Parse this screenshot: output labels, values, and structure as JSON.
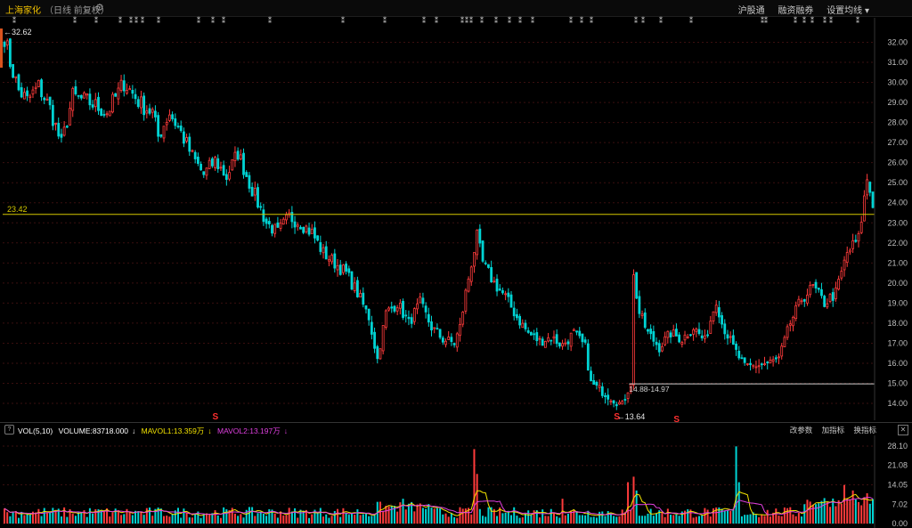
{
  "header": {
    "stock_name": "上海家化",
    "subtitle": "（日线 前复权）",
    "nav": [
      "沪股通",
      "融资融券",
      "设置均线 ▾"
    ]
  },
  "price_panel": {
    "y_ticks": [
      "32.00",
      "31.00",
      "30.00",
      "29.00",
      "28.00",
      "27.00",
      "26.00",
      "25.00",
      "24.00",
      "23.00",
      "22.00",
      "21.00",
      "20.00",
      "19.00",
      "18.00",
      "17.00",
      "16.00",
      "15.00",
      "14.00"
    ],
    "horizontal_line_label": "23.42",
    "high_label": "32.62",
    "low_label": "13.64",
    "range_label": "14.88-14.97",
    "signal_labels": [
      "S",
      "S",
      "S"
    ]
  },
  "volume_panel": {
    "indicator": "VOL(5,10)",
    "volume_text": "VOLUME:83718.000",
    "ma1_text": "MAVOL1:13.359万",
    "ma2_text": "MAVOL2:13.197万",
    "tools": [
      "改参数",
      "加指标",
      "换指标"
    ],
    "close_icon": "close-icon",
    "y_ticks": [
      "28.10",
      "21.08",
      "14.05",
      "7.02",
      "0.00"
    ]
  },
  "chart_data": [
    {
      "type": "candlestick",
      "ylim": [
        13.5,
        32.6
      ],
      "reference_line": 23.42,
      "period_high": 32.62,
      "period_low": 13.64,
      "range_band": [
        14.88,
        14.97
      ],
      "approx_close_path": [
        [
          0,
          32.3
        ],
        [
          2,
          31.0
        ],
        [
          5,
          29.6
        ],
        [
          8,
          29.1
        ],
        [
          12,
          29.8
        ],
        [
          16,
          28.7
        ],
        [
          20,
          26.9
        ],
        [
          24,
          29.3
        ],
        [
          30,
          29.0
        ],
        [
          36,
          28.5
        ],
        [
          42,
          30.0
        ],
        [
          48,
          28.9
        ],
        [
          52,
          28.5
        ],
        [
          54,
          27.3
        ],
        [
          58,
          28.5
        ],
        [
          62,
          27.5
        ],
        [
          66,
          26.3
        ],
        [
          70,
          25.4
        ],
        [
          74,
          26.1
        ],
        [
          78,
          25.3
        ],
        [
          82,
          26.5
        ],
        [
          86,
          25.0
        ],
        [
          92,
          23.0
        ],
        [
          96,
          22.5
        ],
        [
          100,
          23.3
        ],
        [
          104,
          23.0
        ],
        [
          108,
          22.5
        ],
        [
          112,
          21.5
        ],
        [
          116,
          21.0
        ],
        [
          120,
          20.5
        ],
        [
          124,
          19.5
        ],
        [
          128,
          18.3
        ],
        [
          131,
          16.2
        ],
        [
          134,
          18.5
        ],
        [
          138,
          19.0
        ],
        [
          142,
          18.0
        ],
        [
          146,
          19.0
        ],
        [
          150,
          17.8
        ],
        [
          154,
          17.2
        ],
        [
          158,
          17.0
        ],
        [
          160,
          17.8
        ],
        [
          162,
          19.5
        ],
        [
          164,
          21.0
        ],
        [
          166,
          22.3
        ],
        [
          168,
          21.0
        ],
        [
          172,
          20.0
        ],
        [
          176,
          19.3
        ],
        [
          180,
          18.3
        ],
        [
          184,
          17.5
        ],
        [
          188,
          17.1
        ],
        [
          192,
          17.3
        ],
        [
          196,
          16.9
        ],
        [
          200,
          17.5
        ],
        [
          204,
          16.8
        ],
        [
          206,
          15.0
        ],
        [
          210,
          14.6
        ],
        [
          214,
          14.2
        ],
        [
          217,
          13.9
        ],
        [
          220,
          15.1
        ],
        [
          221,
          20.3
        ],
        [
          223,
          18.5
        ],
        [
          226,
          17.5
        ],
        [
          230,
          16.8
        ],
        [
          234,
          17.5
        ],
        [
          238,
          17.2
        ],
        [
          242,
          17.8
        ],
        [
          246,
          17.1
        ],
        [
          250,
          19.2
        ],
        [
          252,
          18.0
        ],
        [
          256,
          16.8
        ],
        [
          260,
          15.8
        ],
        [
          264,
          15.9
        ],
        [
          268,
          16.0
        ],
        [
          272,
          16.2
        ],
        [
          276,
          18.0
        ],
        [
          280,
          19.2
        ],
        [
          284,
          19.8
        ],
        [
          288,
          19.0
        ],
        [
          292,
          19.5
        ],
        [
          296,
          21.5
        ],
        [
          300,
          22.2
        ],
        [
          303,
          25.2
        ],
        [
          305,
          24.0
        ]
      ]
    },
    {
      "type": "bar",
      "name": "VOL",
      "ylim": [
        0,
        28.1
      ],
      "series": [
        {
          "name": "MAVOL1",
          "value_last": 13.359
        },
        {
          "name": "MAVOL2",
          "value_last": 13.197
        }
      ],
      "last_volume": 83718.0
    }
  ],
  "colors": {
    "up": "#ff3b3b",
    "down": "#00d4d4",
    "ma1": "#f2e200",
    "ma2": "#e040e0",
    "ref_line": "#d4c800",
    "grid": "#3a0f0f",
    "axis_text": "#bdbdbd"
  }
}
